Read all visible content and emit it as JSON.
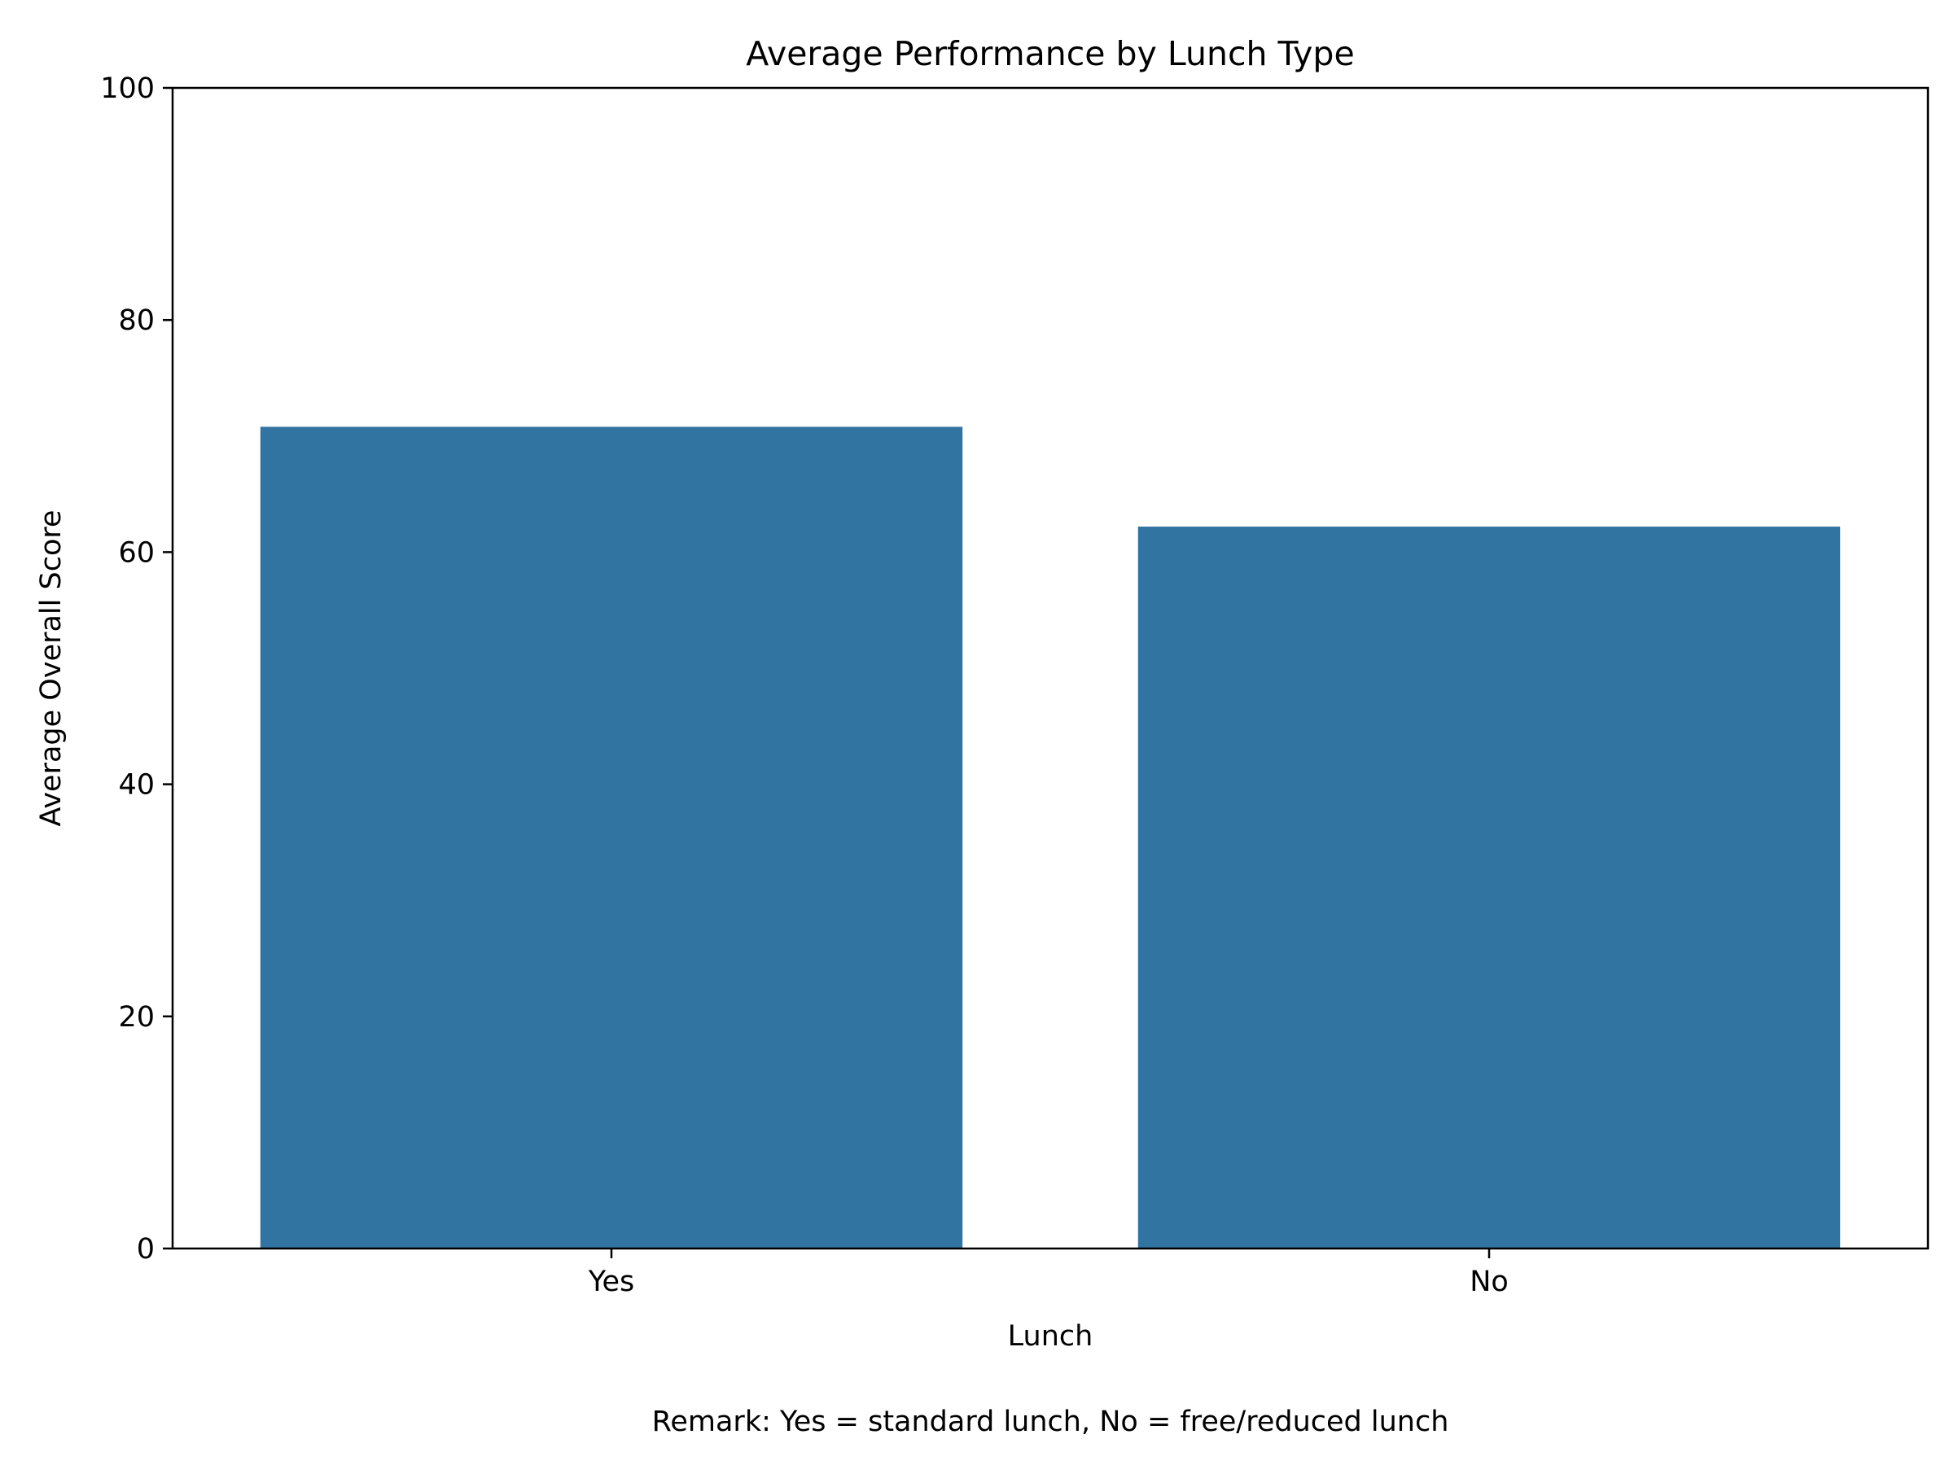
{
  "chart_data": {
    "type": "bar",
    "title": "Average Performance by Lunch Type",
    "xlabel": "Lunch",
    "ylabel": "Average Overall Score",
    "categories": [
      "Yes",
      "No"
    ],
    "values": [
      70.8,
      62.2
    ],
    "ylim": [
      0,
      100
    ],
    "yticks": [
      0,
      20,
      40,
      60,
      80,
      100
    ],
    "bar_color": "#3274a1",
    "grid": false,
    "remark": "Remark: Yes = standard lunch, No = free/reduced lunch"
  }
}
